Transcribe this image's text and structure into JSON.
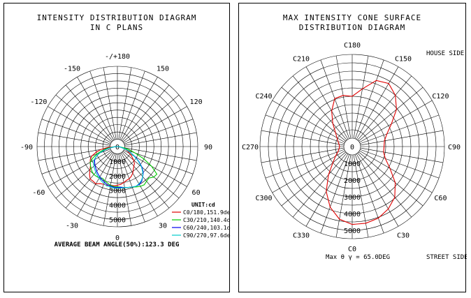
{
  "chart_data": [
    {
      "type": "polar-line",
      "title_lines": [
        "INTENSITY DISTRIBUTION DIAGRAM",
        "IN C PLANS"
      ],
      "angle_labels": [
        "-/+180",
        "150",
        "120",
        "90",
        "60",
        "30",
        "0",
        "-30",
        "-60",
        "-90",
        "-120",
        "-150"
      ],
      "radial_ticks": [
        0,
        1000,
        2000,
        3000,
        4000,
        5000
      ],
      "radial_labels": [
        "0",
        "1000",
        "2000",
        "3000",
        "4000",
        "5000"
      ],
      "rmax": 5500,
      "unit_label": "UNIT:cd",
      "footer": "AVERAGE BEAM ANGLE(50%):123.3 DEG",
      "series": [
        {
          "name": "C0/180,151.9deg",
          "color": "#e00000",
          "points": [
            [
              -90,
              0
            ],
            [
              -85,
              600
            ],
            [
              -80,
              1150
            ],
            [
              -75,
              1500
            ],
            [
              -70,
              1850
            ],
            [
              -65,
              2050
            ],
            [
              -60,
              2150
            ],
            [
              -55,
              2250
            ],
            [
              -50,
              2450
            ],
            [
              -45,
              2700
            ],
            [
              -40,
              2900
            ],
            [
              -35,
              2900
            ],
            [
              -30,
              2950
            ],
            [
              -25,
              2800
            ],
            [
              -20,
              2750
            ],
            [
              -15,
              2750
            ],
            [
              -10,
              2700
            ],
            [
              -5,
              2700
            ],
            [
              0,
              2650
            ],
            [
              5,
              2600
            ],
            [
              10,
              2500
            ],
            [
              15,
              2400
            ],
            [
              20,
              2350
            ],
            [
              25,
              2250
            ],
            [
              30,
              2100
            ],
            [
              35,
              1900
            ],
            [
              40,
              1750
            ],
            [
              45,
              1650
            ],
            [
              50,
              1450
            ],
            [
              55,
              1200
            ],
            [
              60,
              1000
            ],
            [
              65,
              800
            ],
            [
              70,
              600
            ],
            [
              75,
              400
            ],
            [
              80,
              200
            ],
            [
              85,
              80
            ],
            [
              90,
              0
            ]
          ]
        },
        {
          "name": "C30/210,140.4deg",
          "color": "#00cc00",
          "points": [
            [
              -90,
              0
            ],
            [
              -85,
              300
            ],
            [
              -80,
              700
            ],
            [
              -75,
              1100
            ],
            [
              -70,
              1500
            ],
            [
              -65,
              1850
            ],
            [
              -60,
              2150
            ],
            [
              -55,
              2250
            ],
            [
              -50,
              2350
            ],
            [
              -45,
              2450
            ],
            [
              -40,
              2500
            ],
            [
              -35,
              2500
            ],
            [
              -30,
              2450
            ],
            [
              -25,
              2400
            ],
            [
              -20,
              2500
            ],
            [
              -15,
              2600
            ],
            [
              -10,
              2700
            ],
            [
              -5,
              2750
            ],
            [
              0,
              2750
            ],
            [
              5,
              2800
            ],
            [
              10,
              2850
            ],
            [
              15,
              2900
            ],
            [
              20,
              2950
            ],
            [
              25,
              3050
            ],
            [
              30,
              3150
            ],
            [
              35,
              3200
            ],
            [
              40,
              3100
            ],
            [
              45,
              3050
            ],
            [
              50,
              3250
            ],
            [
              55,
              3300
            ],
            [
              60,
              2700
            ],
            [
              65,
              2000
            ],
            [
              70,
              1300
            ],
            [
              75,
              800
            ],
            [
              80,
              400
            ],
            [
              85,
              150
            ],
            [
              90,
              0
            ]
          ]
        },
        {
          "name": "C60/240,103.1deg",
          "color": "#0000ee",
          "points": [
            [
              -90,
              0
            ],
            [
              -85,
              200
            ],
            [
              -80,
              500
            ],
            [
              -75,
              900
            ],
            [
              -70,
              1300
            ],
            [
              -65,
              1600
            ],
            [
              -60,
              1800
            ],
            [
              -55,
              1900
            ],
            [
              -50,
              2000
            ],
            [
              -45,
              2100
            ],
            [
              -40,
              2200
            ],
            [
              -35,
              2300
            ],
            [
              -30,
              2400
            ],
            [
              -25,
              2500
            ],
            [
              -20,
              2600
            ],
            [
              -15,
              2700
            ],
            [
              -10,
              2750
            ],
            [
              -5,
              2800
            ],
            [
              0,
              2800
            ],
            [
              5,
              2800
            ],
            [
              10,
              2850
            ],
            [
              15,
              2900
            ],
            [
              20,
              2950
            ],
            [
              25,
              3000
            ],
            [
              30,
              3000
            ],
            [
              35,
              2900
            ],
            [
              40,
              2700
            ],
            [
              45,
              2500
            ],
            [
              50,
              2200
            ],
            [
              55,
              1800
            ],
            [
              60,
              1400
            ],
            [
              65,
              1000
            ],
            [
              70,
              700
            ],
            [
              75,
              400
            ],
            [
              80,
              200
            ],
            [
              85,
              80
            ],
            [
              90,
              0
            ]
          ]
        },
        {
          "name": "C90/270,97.6deg",
          "color": "#00cccc",
          "points": [
            [
              -90,
              0
            ],
            [
              -85,
              200
            ],
            [
              -80,
              500
            ],
            [
              -75,
              900
            ],
            [
              -70,
              1300
            ],
            [
              -65,
              1600
            ],
            [
              -60,
              1850
            ],
            [
              -55,
              2000
            ],
            [
              -50,
              2100
            ],
            [
              -45,
              2200
            ],
            [
              -40,
              2300
            ],
            [
              -35,
              2400
            ],
            [
              -30,
              2500
            ],
            [
              -25,
              2600
            ],
            [
              -20,
              2700
            ],
            [
              -15,
              2800
            ],
            [
              -10,
              2800
            ],
            [
              -5,
              2850
            ],
            [
              0,
              2850
            ],
            [
              5,
              2850
            ],
            [
              10,
              2850
            ],
            [
              15,
              2900
            ],
            [
              20,
              2950
            ],
            [
              25,
              3000
            ],
            [
              30,
              2950
            ],
            [
              35,
              2850
            ],
            [
              40,
              2700
            ],
            [
              45,
              2450
            ],
            [
              50,
              2150
            ],
            [
              55,
              1750
            ],
            [
              60,
              1350
            ],
            [
              65,
              1000
            ],
            [
              70,
              700
            ],
            [
              75,
              400
            ],
            [
              80,
              200
            ],
            [
              85,
              80
            ],
            [
              90,
              0
            ]
          ]
        }
      ]
    },
    {
      "type": "polar-line",
      "title_lines": [
        "MAX INTENSITY CONE SURFACE",
        "DISTRIBUTION DIAGRAM"
      ],
      "angle_labels": [
        "C180",
        "C150",
        "C120",
        "C90",
        "C60",
        "C30",
        "C0",
        "C330",
        "C300",
        "C270",
        "C240",
        "C210"
      ],
      "radial_ticks": [
        0,
        1000,
        2000,
        3000,
        4000,
        5000
      ],
      "radial_labels": [
        "0",
        "1000",
        "2000",
        "3000",
        "4000",
        "5000"
      ],
      "rmax": 5500,
      "house_side": "HOUSE SIDE",
      "street_side": "STREET SIDE",
      "footer": "Max θ γ = 65.0DEG",
      "series": [
        {
          "name": "",
          "color": "#e00000",
          "points": [
            [
              0,
              4650
            ],
            [
              10,
              4650
            ],
            [
              20,
              4550
            ],
            [
              30,
              4300
            ],
            [
              40,
              3950
            ],
            [
              50,
              3350
            ],
            [
              60,
              2600
            ],
            [
              70,
              2100
            ],
            [
              80,
              1900
            ],
            [
              90,
              1900
            ],
            [
              100,
              1950
            ],
            [
              110,
              2200
            ],
            [
              120,
              2700
            ],
            [
              130,
              3450
            ],
            [
              140,
              4000
            ],
            [
              150,
              4350
            ],
            [
              160,
              4200
            ],
            [
              170,
              3500
            ],
            [
              180,
              3000
            ],
            [
              190,
              3100
            ],
            [
              200,
              3050
            ],
            [
              210,
              2450
            ],
            [
              220,
              1800
            ],
            [
              230,
              1300
            ],
            [
              240,
              1050
            ],
            [
              250,
              900
            ],
            [
              260,
              800
            ],
            [
              270,
              750
            ],
            [
              280,
              800
            ],
            [
              290,
              900
            ],
            [
              300,
              1150
            ],
            [
              310,
              1500
            ],
            [
              320,
              2200
            ],
            [
              330,
              3100
            ],
            [
              340,
              3850
            ],
            [
              350,
              4400
            ],
            [
              360,
              4650
            ]
          ]
        }
      ]
    }
  ]
}
